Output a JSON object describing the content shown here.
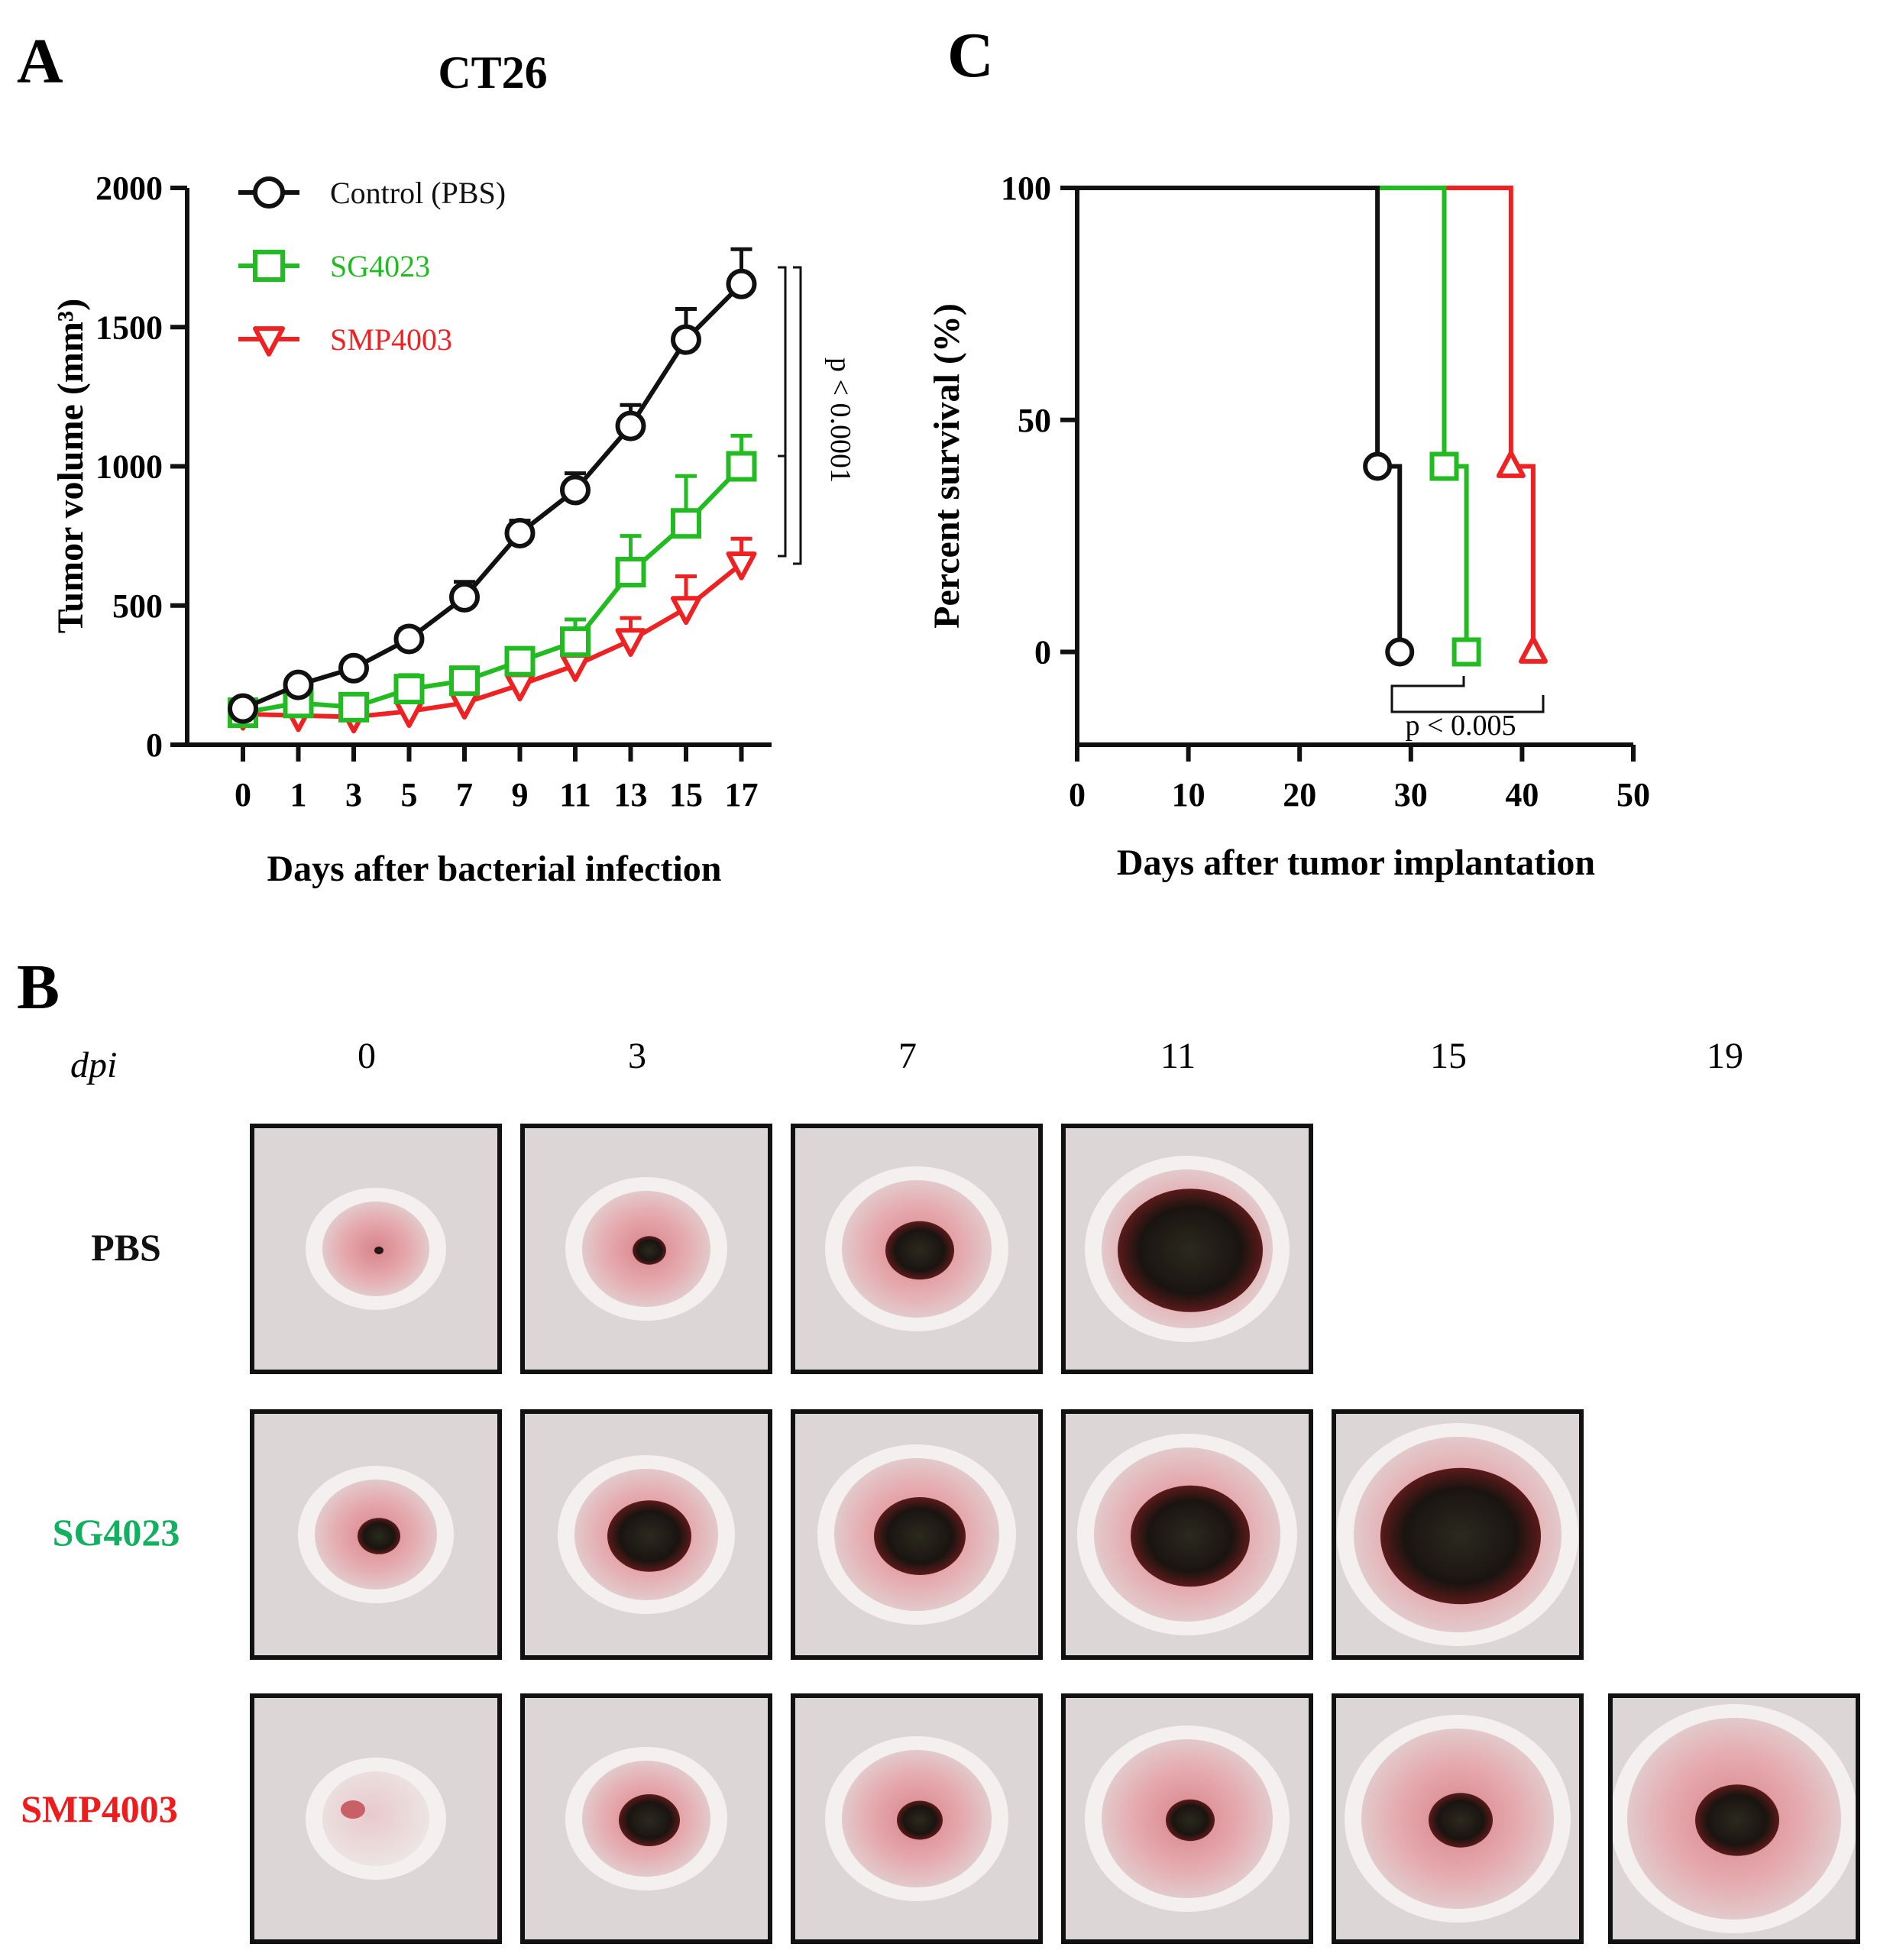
{
  "colors": {
    "control": "#111111",
    "sg4023": "#22bb22",
    "smp4003": "#ee2222",
    "sg_label": "#12b060",
    "smp_label": "#ee1c1c"
  },
  "panels": {
    "a": "A",
    "b": "B",
    "c": "C"
  },
  "chart_data": [
    {
      "type": "line",
      "title": "CT26",
      "xlabel": "Days after bacterial infection",
      "ylabel": "Tumor volume (mm³)",
      "categories": [
        "0",
        "1",
        "3",
        "5",
        "7",
        "9",
        "11",
        "13",
        "15",
        "17"
      ],
      "ylim": [
        0,
        2000
      ],
      "yticks": [
        "0",
        "500",
        "1000",
        "1500",
        "2000"
      ],
      "series": [
        {
          "name": "Control (PBS)",
          "marker": "circle",
          "color": "#111111",
          "values": [
            130,
            215,
            275,
            380,
            530,
            760,
            915,
            1145,
            1455,
            1655
          ],
          "errors": [
            20,
            25,
            30,
            35,
            55,
            45,
            60,
            75,
            110,
            125
          ]
        },
        {
          "name": "SG4023",
          "marker": "square",
          "color": "#22bb22",
          "values": [
            115,
            150,
            135,
            200,
            230,
            300,
            370,
            620,
            795,
            1000
          ],
          "errors": [
            25,
            30,
            30,
            50,
            40,
            45,
            80,
            130,
            170,
            110
          ]
        },
        {
          "name": "SMP4003",
          "marker": "triangle-down",
          "color": "#ee2222",
          "values": [
            110,
            105,
            100,
            120,
            150,
            215,
            285,
            375,
            490,
            650
          ],
          "errors": [
            20,
            20,
            20,
            30,
            30,
            40,
            50,
            80,
            115,
            90
          ]
        }
      ],
      "annotation": "p < 0.0001"
    },
    {
      "type": "line",
      "step": true,
      "xlabel": "Days after tumor implantation",
      "ylabel": "Percent survival (%)",
      "xlim": [
        0,
        50
      ],
      "ylim": [
        -20,
        100
      ],
      "xticks": [
        "0",
        "10",
        "20",
        "30",
        "40",
        "50"
      ],
      "yticks": [
        "0",
        "50",
        "100"
      ],
      "series": [
        {
          "name": "Control (PBS)",
          "marker": "circle",
          "color": "#111111",
          "x": [
            0,
            27,
            29
          ],
          "y": [
            100,
            40,
            0
          ]
        },
        {
          "name": "SG4023",
          "marker": "square",
          "color": "#22bb22",
          "x": [
            0,
            33,
            35
          ],
          "y": [
            100,
            40,
            0
          ]
        },
        {
          "name": "SMP4003",
          "marker": "triangle-up",
          "color": "#ee2222",
          "x": [
            0,
            39,
            41
          ],
          "y": [
            100,
            40,
            0
          ]
        }
      ],
      "annotation": "p < 0.005"
    }
  ],
  "photo_grid": {
    "dpi_label": "dpi",
    "days": [
      "0",
      "3",
      "7",
      "11",
      "15",
      "19"
    ],
    "rows": [
      {
        "label": "PBS",
        "count": 4
      },
      {
        "label": "SG4023",
        "count": 5
      },
      {
        "label": "SMP4003",
        "count": 6
      }
    ]
  }
}
